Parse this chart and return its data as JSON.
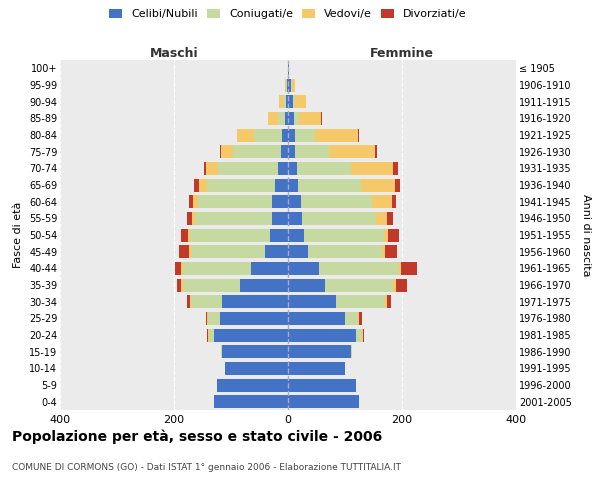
{
  "age_groups": [
    "0-4",
    "5-9",
    "10-14",
    "15-19",
    "20-24",
    "25-29",
    "30-34",
    "35-39",
    "40-44",
    "45-49",
    "50-54",
    "55-59",
    "60-64",
    "65-69",
    "70-74",
    "75-79",
    "80-84",
    "85-89",
    "90-94",
    "95-99",
    "100+"
  ],
  "birth_years": [
    "2001-2005",
    "1996-2000",
    "1991-1995",
    "1986-1990",
    "1981-1985",
    "1976-1980",
    "1971-1975",
    "1966-1970",
    "1961-1965",
    "1956-1960",
    "1951-1955",
    "1946-1950",
    "1941-1945",
    "1936-1940",
    "1931-1935",
    "1926-1930",
    "1921-1925",
    "1916-1920",
    "1911-1915",
    "1906-1910",
    "≤ 1905"
  ],
  "colors": {
    "celibi": "#4472C4",
    "coniugati": "#c5d9a0",
    "vedovi": "#f5c96a",
    "divorziati": "#c0392b"
  },
  "males": {
    "celibi": [
      130,
      125,
      110,
      115,
      130,
      120,
      115,
      85,
      65,
      40,
      32,
      28,
      28,
      22,
      18,
      12,
      10,
      5,
      3,
      2,
      0
    ],
    "coniugati": [
      0,
      0,
      0,
      2,
      8,
      20,
      55,
      100,
      120,
      130,
      140,
      135,
      130,
      120,
      105,
      85,
      50,
      12,
      5,
      2,
      0
    ],
    "vedovi": [
      0,
      0,
      0,
      0,
      2,
      2,
      2,
      2,
      2,
      3,
      3,
      5,
      8,
      15,
      20,
      20,
      30,
      18,
      8,
      2,
      0
    ],
    "divorziati": [
      0,
      0,
      0,
      0,
      2,
      2,
      5,
      8,
      12,
      18,
      12,
      10,
      8,
      8,
      4,
      2,
      0,
      0,
      0,
      0,
      0
    ]
  },
  "females": {
    "nubili": [
      125,
      120,
      100,
      110,
      120,
      100,
      85,
      65,
      55,
      35,
      28,
      24,
      22,
      18,
      15,
      12,
      12,
      10,
      8,
      5,
      2
    ],
    "coniugate": [
      0,
      0,
      0,
      2,
      10,
      22,
      85,
      120,
      140,
      130,
      140,
      130,
      125,
      110,
      95,
      60,
      35,
      10,
      5,
      2,
      0
    ],
    "vedove": [
      0,
      0,
      0,
      0,
      2,
      2,
      3,
      4,
      4,
      5,
      8,
      20,
      35,
      60,
      75,
      80,
      75,
      38,
      18,
      5,
      0
    ],
    "divorziate": [
      0,
      0,
      0,
      0,
      2,
      5,
      8,
      20,
      28,
      22,
      18,
      10,
      8,
      8,
      8,
      5,
      2,
      2,
      0,
      0,
      0
    ]
  },
  "xlim": 400,
  "title": "Popolazione per età, sesso e stato civile - 2006",
  "subtitle": "COMUNE DI CORMONS (GO) - Dati ISTAT 1° gennaio 2006 - Elaborazione TUTTITALIA.IT",
  "xlabel_left": "Maschi",
  "xlabel_right": "Femmine",
  "ylabel_left": "Fasce di età",
  "ylabel_right": "Anni di nascita",
  "legend_labels": [
    "Celibi/Nubili",
    "Coniugati/e",
    "Vedovi/e",
    "Divorziati/e"
  ],
  "background_color": "#ffffff",
  "plot_bg_color": "#ebebeb",
  "grid_color": "#ffffff"
}
